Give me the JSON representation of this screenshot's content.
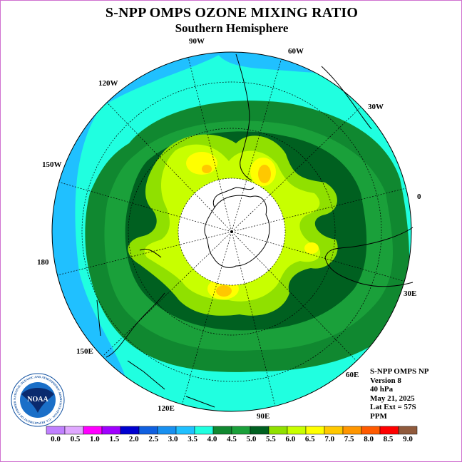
{
  "title": "S-NPP OMPS OZONE MIXING RATIO",
  "subtitle": "Southern Hemisphere",
  "longitude_labels": [
    "90W",
    "60W",
    "30W",
    "0",
    "30E",
    "60E",
    "90E",
    "120E",
    "150E",
    "180",
    "150W",
    "120W"
  ],
  "info": {
    "instrument": "S-NPP OMPS NP",
    "version": "Version 8",
    "level": "40 hPa",
    "date": "May 21, 2025",
    "lat_extent": "Lat Ext = 57S",
    "units": "PPM"
  },
  "logo": {
    "text": "NOAA",
    "ring_text": "NATIONAL OCEANIC AND ATMOSPHERIC ADMINISTRATION · U.S. DEPARTMENT OF COMMERCE"
  },
  "colorbar": {
    "labels": [
      "0.0",
      "0.5",
      "1.0",
      "1.5",
      "2.0",
      "2.5",
      "3.0",
      "3.5",
      "4.0",
      "4.5",
      "5.0",
      "5.5",
      "6.0",
      "6.5",
      "7.0",
      "7.5",
      "8.0",
      "8.5",
      "9.0"
    ],
    "colors": [
      "#c080ff",
      "#e0a8ff",
      "#ff00ff",
      "#a000ff",
      "#0000d0",
      "#1060e0",
      "#1890f0",
      "#20c0ff",
      "#20ffe0",
      "#108830",
      "#1aa03a",
      "#006020",
      "#90e000",
      "#c8ff00",
      "#ffff00",
      "#ffc800",
      "#ff9600",
      "#ff5a00",
      "#ff0000",
      "#905a3c"
    ]
  },
  "map_colors": {
    "water_dark": "#1890f0",
    "blue": "#20c0ff",
    "cyan": "#20ffe0",
    "green_dark": "#108830",
    "green": "#1aa03a",
    "green_darkest": "#006020",
    "yellowgreen": "#90e000",
    "lime": "#c8ff00",
    "yellow": "#ffff00",
    "orange": "#ffc800"
  }
}
